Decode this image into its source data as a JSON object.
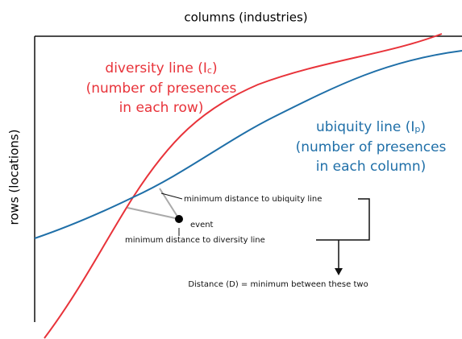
{
  "x_axis_label": "columns (industries)",
  "y_axis_label": "rows (locations)",
  "diversity_line": {
    "title_prefix": "diversity line (I",
    "subscript": "c",
    "title_suffix": ")",
    "description": [
      "(number of presences",
      "in each row)"
    ]
  },
  "ubiquity_line": {
    "title_prefix": "ubiquity line (I",
    "subscript": "p",
    "title_suffix": ")",
    "description": [
      "(number of presences",
      "in each column)"
    ]
  },
  "annotations": {
    "to_ubiquity": "minimum distance to ubiquity line",
    "event": "event",
    "to_diversity": "minimum distance to diversity line",
    "distance": "Distance (D) = minimum between these two"
  }
}
